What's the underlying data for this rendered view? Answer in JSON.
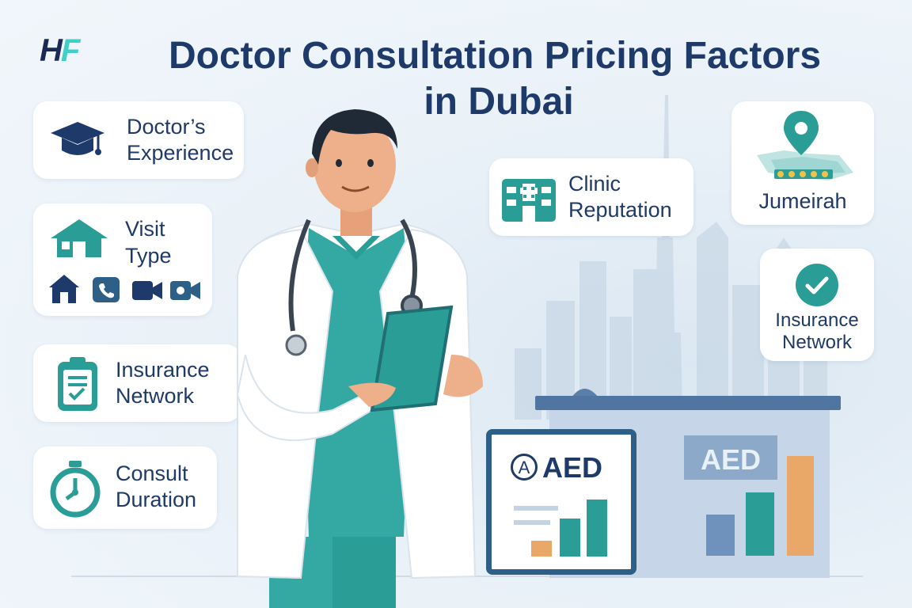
{
  "logo": {
    "h": "H",
    "f": "F"
  },
  "title": {
    "line1": "Doctor Consultation Pricing Factors",
    "line2": "in Dubai"
  },
  "left_cards": [
    {
      "line1": "Doctor’s",
      "line2": "Experience",
      "icon": "graduation-cap-icon"
    },
    {
      "line1": "Visit",
      "line2": "Type",
      "icon": "house-icon",
      "subicons": [
        "home-icon",
        "phone-icon",
        "video-camera-icon",
        "video-call-icon"
      ]
    },
    {
      "line1": "Insurance",
      "line2": "Network",
      "icon": "clipboard-icon"
    },
    {
      "line1": "Consult",
      "line2": "Duration",
      "icon": "stopwatch-icon"
    }
  ],
  "center_card": {
    "line1": "Clinic",
    "line2": "Reputation",
    "icon": "hospital-icon"
  },
  "right_cards": [
    {
      "label": "Jumeirah",
      "icon": "map-pin-icon"
    },
    {
      "line1": "Insurance",
      "line2": "Network",
      "icon": "check-circle-icon"
    }
  ],
  "price_board": {
    "currency": "AED",
    "badge": "A"
  },
  "building_sign": {
    "currency": "AED"
  },
  "colors": {
    "navy": "#1e3a6a",
    "teal": "#2a9d97",
    "orange": "#e9a867",
    "background": "#e9f1f8"
  }
}
